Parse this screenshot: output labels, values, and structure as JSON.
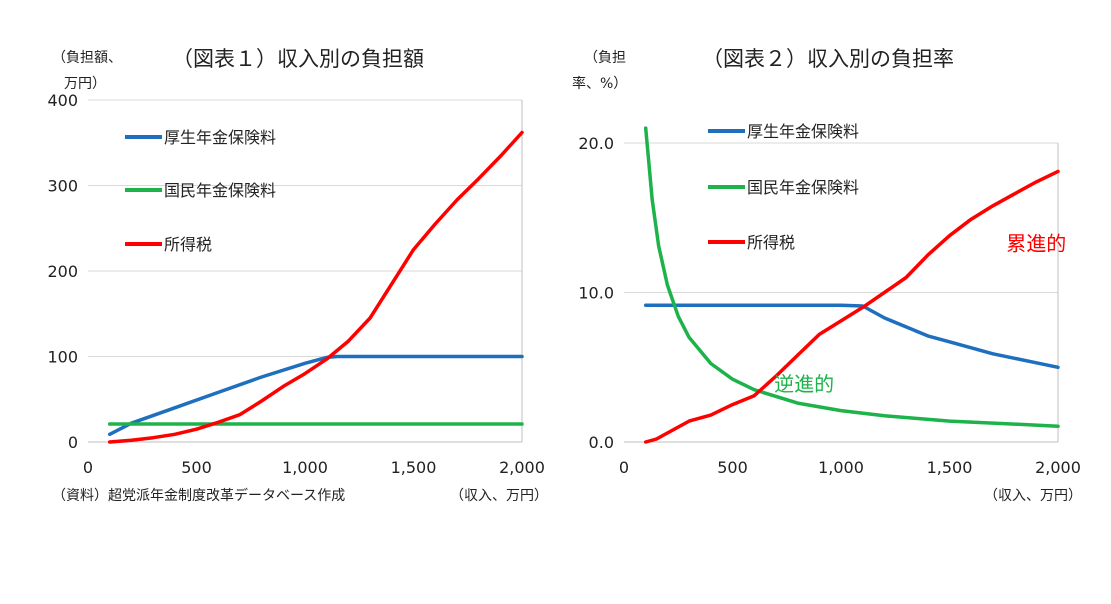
{
  "colors": {
    "kosei": "#1f6fbf",
    "kokumin": "#1db34a",
    "shotoku": "#ff0000",
    "grid": "#d9d9d9",
    "axis": "#bfbfbf"
  },
  "source_note": "（資料）超党派年金制度改革データベース作成",
  "chart_data": [
    {
      "type": "line",
      "title": "（図表１）収入別の負担額",
      "ylabel": [
        "（負担額、",
        "万円）"
      ],
      "xlabel": "（収入、万円）",
      "xlim": [
        0,
        2000
      ],
      "ylim": [
        0,
        400
      ],
      "xticks": [
        0,
        500,
        1000,
        1500,
        2000
      ],
      "xtick_labels": [
        "0",
        "500",
        "1,000",
        "1,500",
        "2,000"
      ],
      "yticks": [
        0,
        100,
        200,
        300,
        400
      ],
      "ytick_labels": [
        "0",
        "100",
        "200",
        "300",
        "400"
      ],
      "grid": true,
      "legend_position": "top-left",
      "series": [
        {
          "name": "厚生年金保険料",
          "color_key": "kosei",
          "x": [
            100,
            200,
            400,
            600,
            800,
            1000,
            1100,
            1150,
            1500,
            2000
          ],
          "y": [
            9,
            22,
            40,
            58,
            76,
            92,
            99,
            100,
            100,
            100
          ]
        },
        {
          "name": "国民年金保険料",
          "color_key": "kokumin",
          "x": [
            100,
            2000
          ],
          "y": [
            21,
            21
          ]
        },
        {
          "name": "所得税",
          "color_key": "shotoku",
          "x": [
            100,
            200,
            300,
            400,
            500,
            600,
            700,
            800,
            900,
            1000,
            1100,
            1200,
            1300,
            1400,
            1500,
            1600,
            1700,
            1800,
            1900,
            2000
          ],
          "y": [
            0,
            2,
            5,
            9,
            15,
            23,
            32,
            48,
            65,
            80,
            97,
            118,
            145,
            185,
            225,
            255,
            283,
            308,
            334,
            362
          ]
        }
      ],
      "annotations": []
    },
    {
      "type": "line",
      "title": "（図表２）収入別の負担率",
      "ylabel": [
        "（負担",
        "率、%）"
      ],
      "xlabel": "（収入、万円）",
      "xlim": [
        0,
        2000
      ],
      "ylim": [
        0,
        20
      ],
      "xticks": [
        0,
        500,
        1000,
        1500,
        2000
      ],
      "xtick_labels": [
        "0",
        "500",
        "1,000",
        "1,500",
        "2,000"
      ],
      "yticks": [
        0,
        10,
        20
      ],
      "ytick_labels": [
        "0.0",
        "10.0",
        "20.0"
      ],
      "grid": true,
      "legend_position": "top-left",
      "series": [
        {
          "name": "厚生年金保険料",
          "color_key": "kosei",
          "x": [
            100,
            1000,
            1100,
            1200,
            1300,
            1400,
            1500,
            1600,
            1700,
            1800,
            1900,
            2000
          ],
          "y": [
            9.15,
            9.15,
            9.1,
            8.3,
            7.7,
            7.1,
            6.7,
            6.3,
            5.9,
            5.6,
            5.3,
            5.0
          ]
        },
        {
          "name": "国民年金保険料",
          "color_key": "kokumin",
          "x": [
            100,
            130,
            160,
            200,
            250,
            300,
            400,
            500,
            600,
            800,
            1000,
            1200,
            1500,
            1800,
            2000
          ],
          "y": [
            21.0,
            16.2,
            13.1,
            10.5,
            8.4,
            7.0,
            5.25,
            4.2,
            3.5,
            2.6,
            2.1,
            1.75,
            1.4,
            1.2,
            1.05
          ]
        },
        {
          "name": "所得税",
          "color_key": "shotoku",
          "x": [
            100,
            150,
            200,
            300,
            400,
            500,
            600,
            700,
            800,
            900,
            1000,
            1100,
            1200,
            1300,
            1400,
            1500,
            1600,
            1700,
            1800,
            1900,
            2000
          ],
          "y": [
            0.0,
            0.2,
            0.6,
            1.4,
            1.8,
            2.5,
            3.1,
            4.4,
            5.8,
            7.2,
            8.1,
            9.0,
            10.0,
            11.0,
            12.5,
            13.8,
            14.9,
            15.8,
            16.6,
            17.4,
            18.1
          ]
        }
      ],
      "annotations": [
        {
          "text": "累進的",
          "color_key": "shotoku",
          "at": [
            1900,
            12.8
          ]
        },
        {
          "text": "逆進的",
          "color_key": "kokumin",
          "at": [
            830,
            3.4
          ]
        }
      ]
    }
  ]
}
